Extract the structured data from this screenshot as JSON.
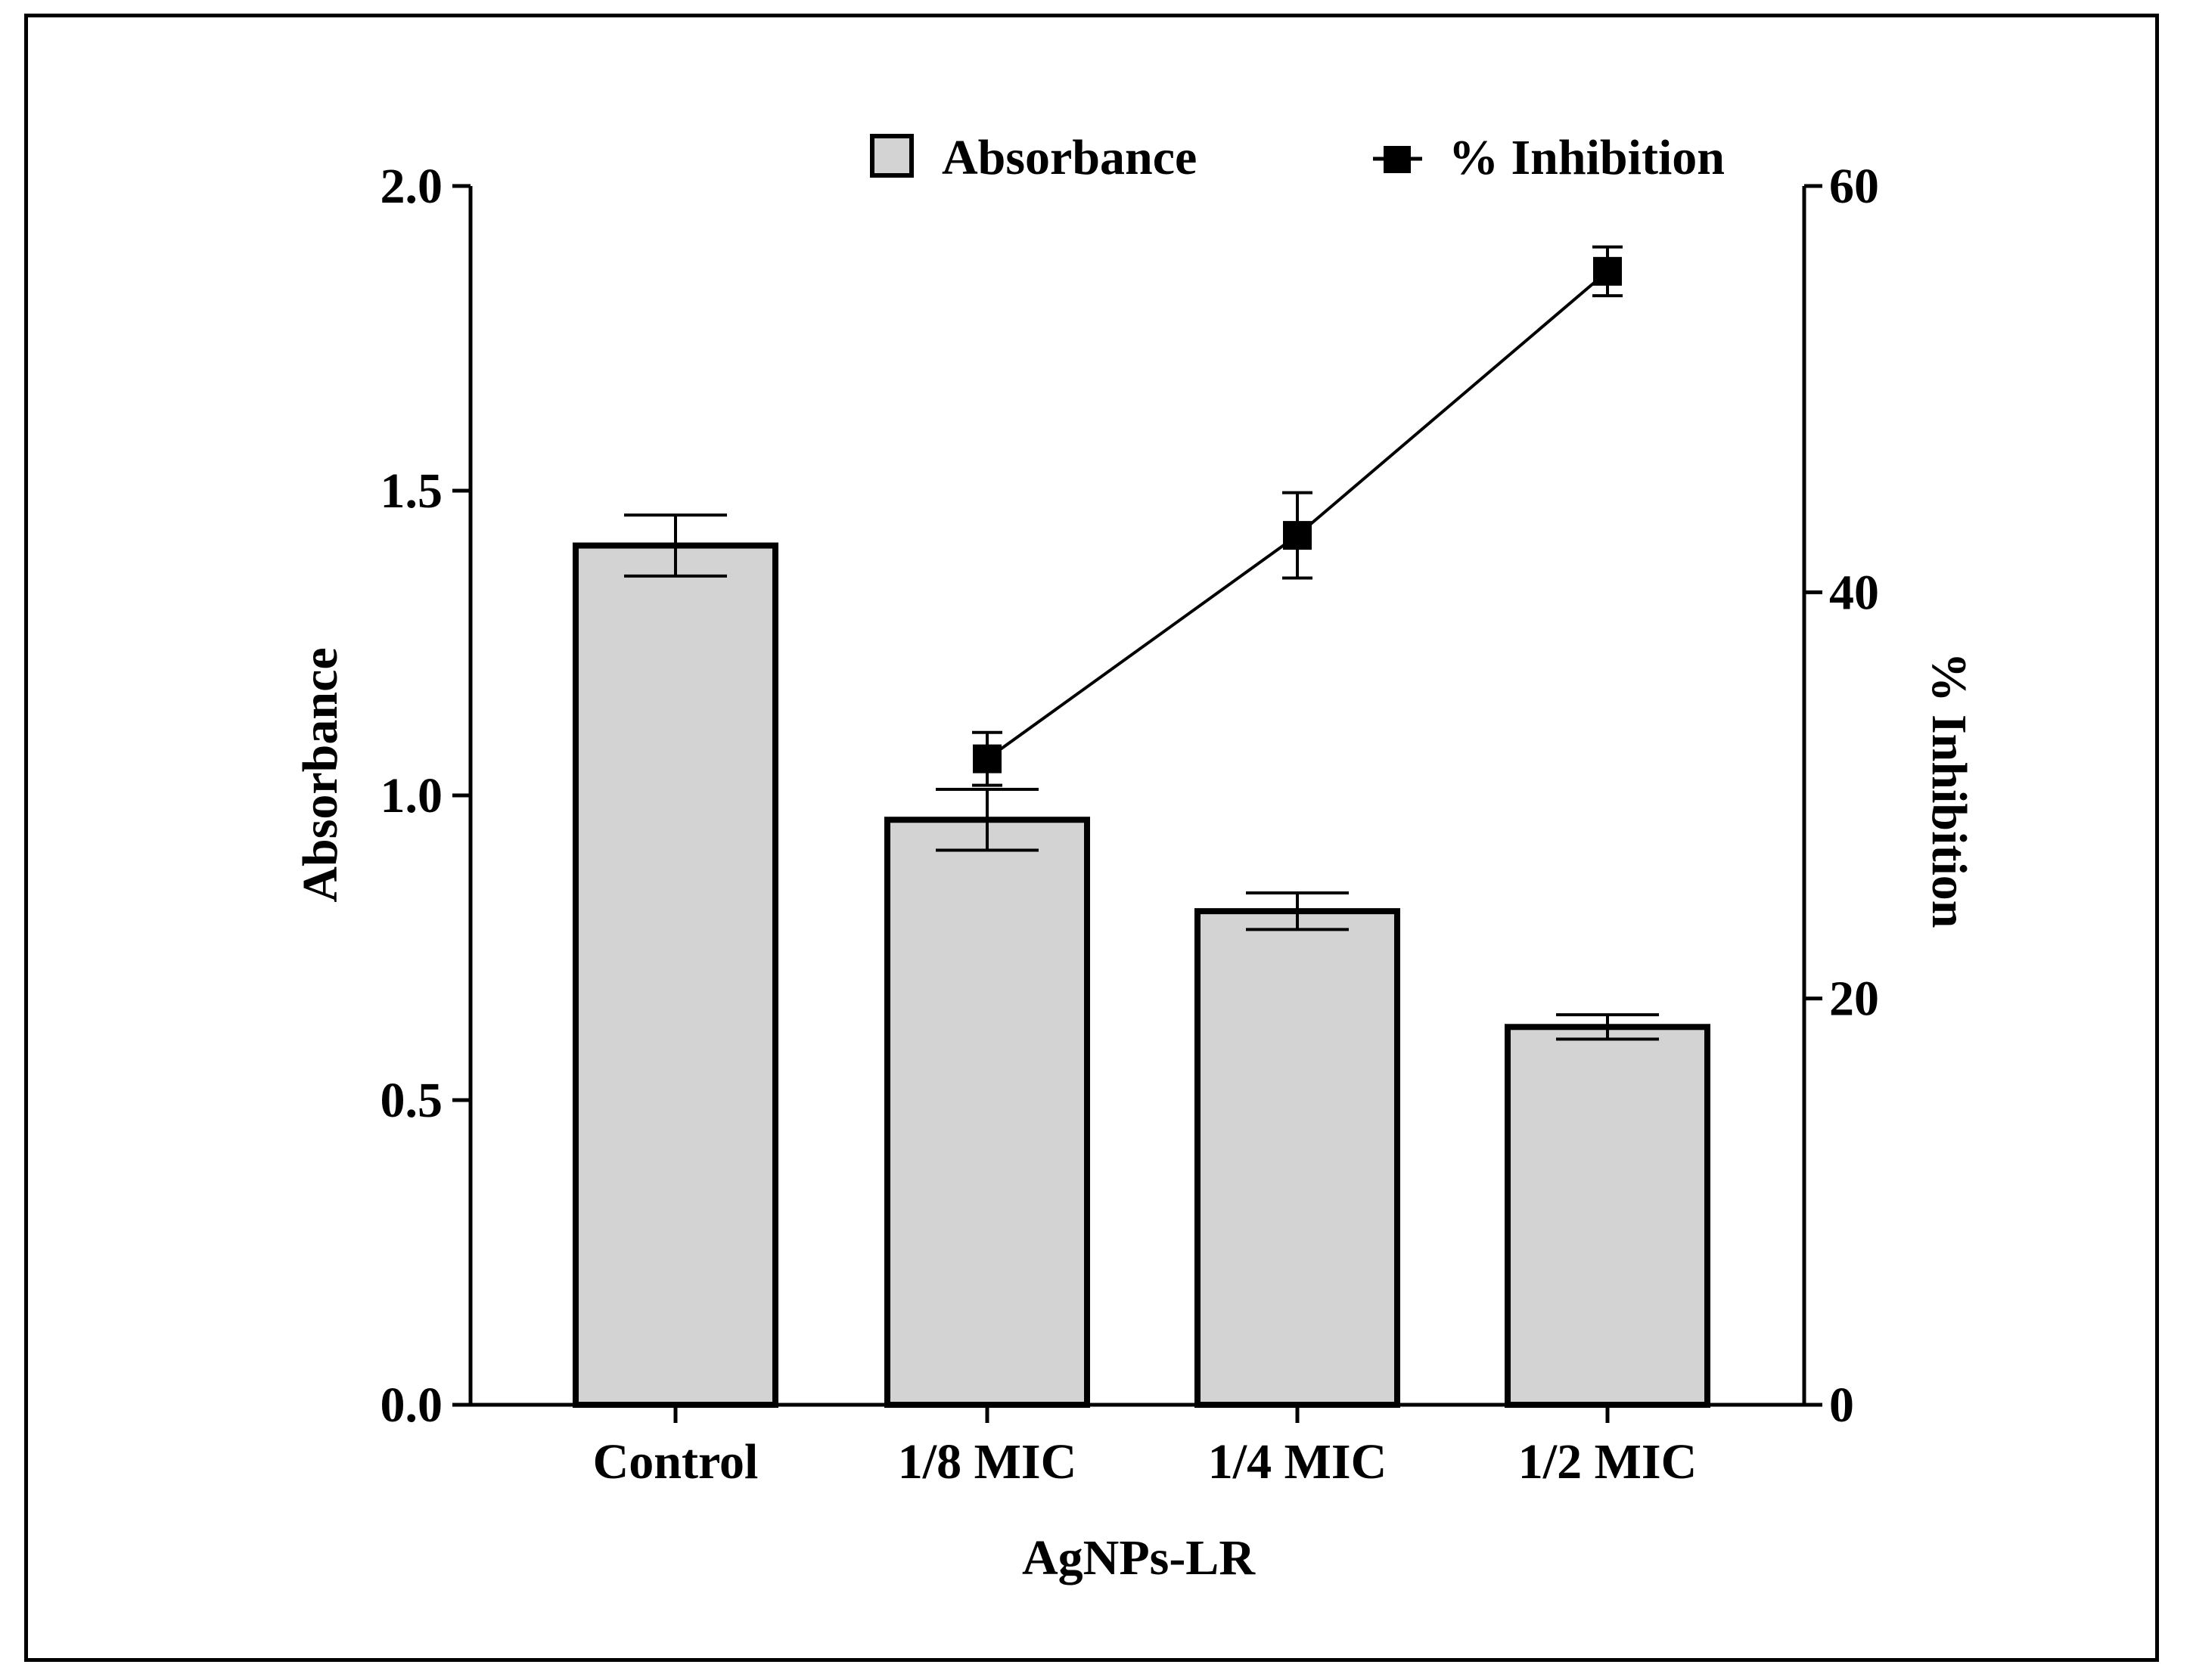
{
  "chart_data": {
    "type": "bar",
    "title": "",
    "categories": [
      "Control",
      "1/8 MIC",
      "1/4 MIC",
      "1/2 MIC"
    ],
    "xlabel": "AgNPs-LR",
    "ylabel": "Absorbance",
    "y2label": "% Inhibition",
    "ylim": [
      0,
      2.0
    ],
    "y2lim": [
      0,
      60
    ],
    "yticks": [
      "0.0",
      "0.5",
      "1.0",
      "1.5",
      "2.0"
    ],
    "y2ticks": [
      "0",
      "20",
      "40",
      "60"
    ],
    "legend_position": "top-right",
    "series": [
      {
        "name": "Absorbance",
        "kind": "bar",
        "axis": "left",
        "values": [
          1.41,
          0.96,
          0.81,
          0.62
        ],
        "errors": [
          0.05,
          0.05,
          0.03,
          0.02
        ],
        "color": "#d3d3d3",
        "edge_color": "#000000"
      },
      {
        "name": "% Inhibition",
        "kind": "line",
        "axis": "right",
        "values": [
          null,
          31.8,
          42.8,
          55.8
        ],
        "errors": [
          null,
          1.3,
          2.1,
          1.2
        ],
        "color": "#000000"
      }
    ]
  }
}
